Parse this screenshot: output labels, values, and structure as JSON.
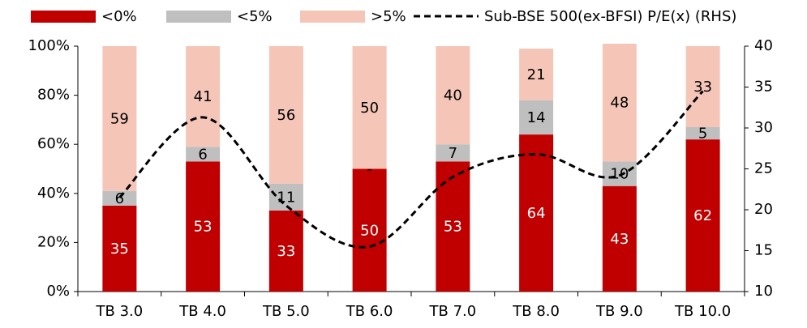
{
  "chart_data": {
    "type": "stacked_bar_line",
    "categories": [
      "TB 3.0",
      "TB 4.0",
      "TB 5.0",
      "TB 6.0",
      "TB 7.0",
      "TB 8.0",
      "TB 9.0",
      "TB 10.0"
    ],
    "series": [
      {
        "name": "<0%",
        "color": "#c00000",
        "values": [
          35,
          53,
          33,
          50,
          53,
          64,
          43,
          62
        ]
      },
      {
        "name": "<5%",
        "color": "#bfbfbf",
        "values": [
          6,
          6,
          11,
          0,
          7,
          14,
          10,
          5
        ],
        "value_labels": [
          "6",
          "6",
          "11",
          "-",
          "7",
          "14",
          "10",
          "5"
        ]
      },
      {
        "name": ">5%",
        "color": "#f5c6b8",
        "values": [
          59,
          41,
          56,
          50,
          40,
          21,
          48,
          33
        ]
      },
      {
        "name": "Sub-BSE 500(ex-BFSI) P/E(x) (RHS)",
        "color": "#000000",
        "axis": "y2",
        "type": "line",
        "dashed": true,
        "values": [
          21.5,
          31.3,
          20.5,
          15.5,
          24,
          26.8,
          24.2,
          34.5
        ]
      }
    ],
    "ylim": [
      0,
      100
    ],
    "yticks": [
      {
        "value": 0,
        "label": "0%"
      },
      {
        "value": 20,
        "label": "20%"
      },
      {
        "value": 40,
        "label": "40%"
      },
      {
        "value": 60,
        "label": "60%"
      },
      {
        "value": 80,
        "label": "80%"
      },
      {
        "value": 100,
        "label": "100%"
      }
    ],
    "y2lim": [
      10,
      40
    ],
    "y2ticks": [
      10,
      15,
      20,
      25,
      30,
      35,
      40
    ],
    "legend": "top"
  }
}
